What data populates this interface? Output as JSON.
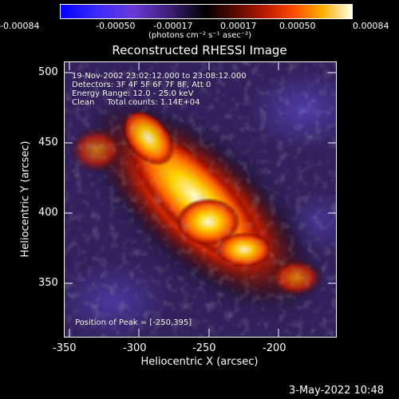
{
  "colorbar": {
    "ticks": [
      "-0.00084",
      "-0.00050",
      "-0.00017",
      "0.00017",
      "0.00050",
      "0.00084"
    ],
    "units": "(photons cm⁻² s⁻¹ asec⁻²)"
  },
  "title": "Reconstructed RHESSI Image",
  "annotations": {
    "time": "19-Nov-2002 23:02:12.000 to 23:08:12.000",
    "detectors": "Detectors: 3F 4F 5F 6F 7F 8F, Att 0",
    "energy": "Energy Range: 12.0 - 25.0 keV",
    "clean": "Clean     Total counts: 1.14E+04",
    "peak": "Position of Peak = [-250,395]"
  },
  "axes": {
    "xlabel": "Heliocentric X (arcsec)",
    "ylabel": "Heliocentric Y (arcsec)",
    "xticks": [
      "-350",
      "-300",
      "-250",
      "-200"
    ],
    "yticks": [
      "500",
      "450",
      "400",
      "350"
    ]
  },
  "footer": {
    "timestamp": "3-May-2022 10:48"
  }
}
